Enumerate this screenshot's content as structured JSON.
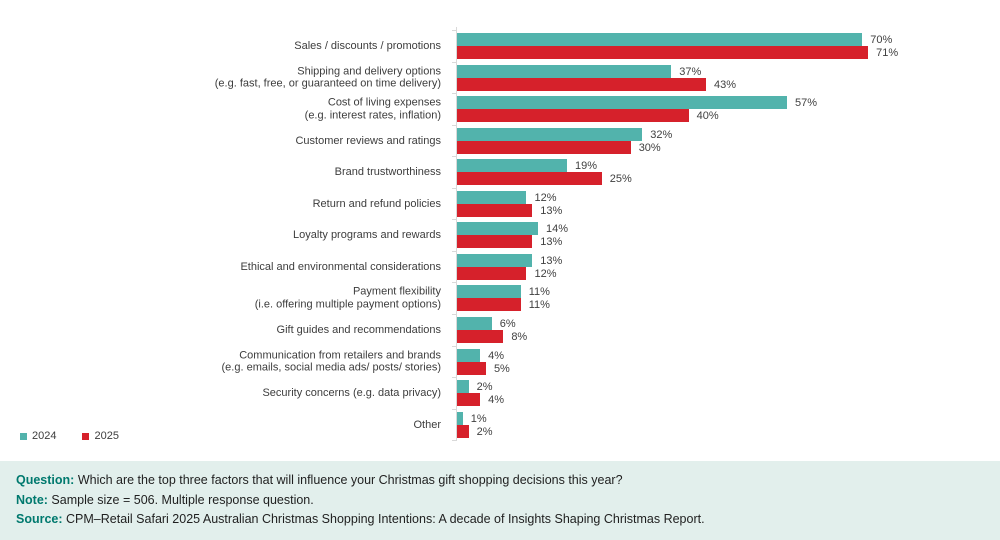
{
  "colors": {
    "series_2024": "#52B3AC",
    "series_2025": "#D6212B",
    "axis": "#D9D9D9",
    "label_text": "#3D3D3D",
    "value_text": "#404040",
    "footer_bg": "#E2EFEC",
    "footer_label": "#00796E"
  },
  "chart_data": {
    "type": "bar",
    "orientation": "horizontal",
    "title": "",
    "xlabel": "",
    "ylabel": "",
    "xlim": [
      0,
      100
    ],
    "grid": false,
    "legend_position": "bottom-left",
    "value_suffix": "%",
    "categories": [
      "Sales / discounts / promotions",
      "Shipping and delivery options\n(e.g. fast, free, or guaranteed on time delivery)",
      "Cost of living expenses\n(e.g. interest rates, inflation)",
      "Customer reviews and ratings",
      "Brand trustworthiness",
      "Return and refund policies",
      "Loyalty programs and rewards",
      "Ethical and environmental considerations",
      "Payment flexibility\n(i.e. offering multiple payment options)",
      "Gift guides and recommendations",
      "Communication from retailers and brands\n(e.g. emails, social media ads/ posts/ stories)",
      "Security concerns (e.g. data privacy)",
      "Other"
    ],
    "series": [
      {
        "name": "2024",
        "values": [
          70,
          37,
          57,
          32,
          19,
          12,
          14,
          13,
          11,
          6,
          4,
          2,
          1
        ]
      },
      {
        "name": "2025",
        "values": [
          71,
          43,
          40,
          30,
          25,
          13,
          13,
          12,
          11,
          8,
          5,
          4,
          2
        ]
      }
    ]
  },
  "legend": {
    "items": [
      {
        "label": "2024"
      },
      {
        "label": "2025"
      }
    ]
  },
  "footer": {
    "lines": [
      {
        "label": "Question:",
        "text": " Which are the top three factors that will influence your Christmas gift shopping decisions this year?"
      },
      {
        "label": "Note:",
        "text": " Sample size = 506. Multiple response question."
      },
      {
        "label": "Source:",
        "text": " CPM–Retail Safari 2025 Australian Christmas Shopping Intentions: A decade of Insights Shaping Christmas Report."
      }
    ]
  }
}
